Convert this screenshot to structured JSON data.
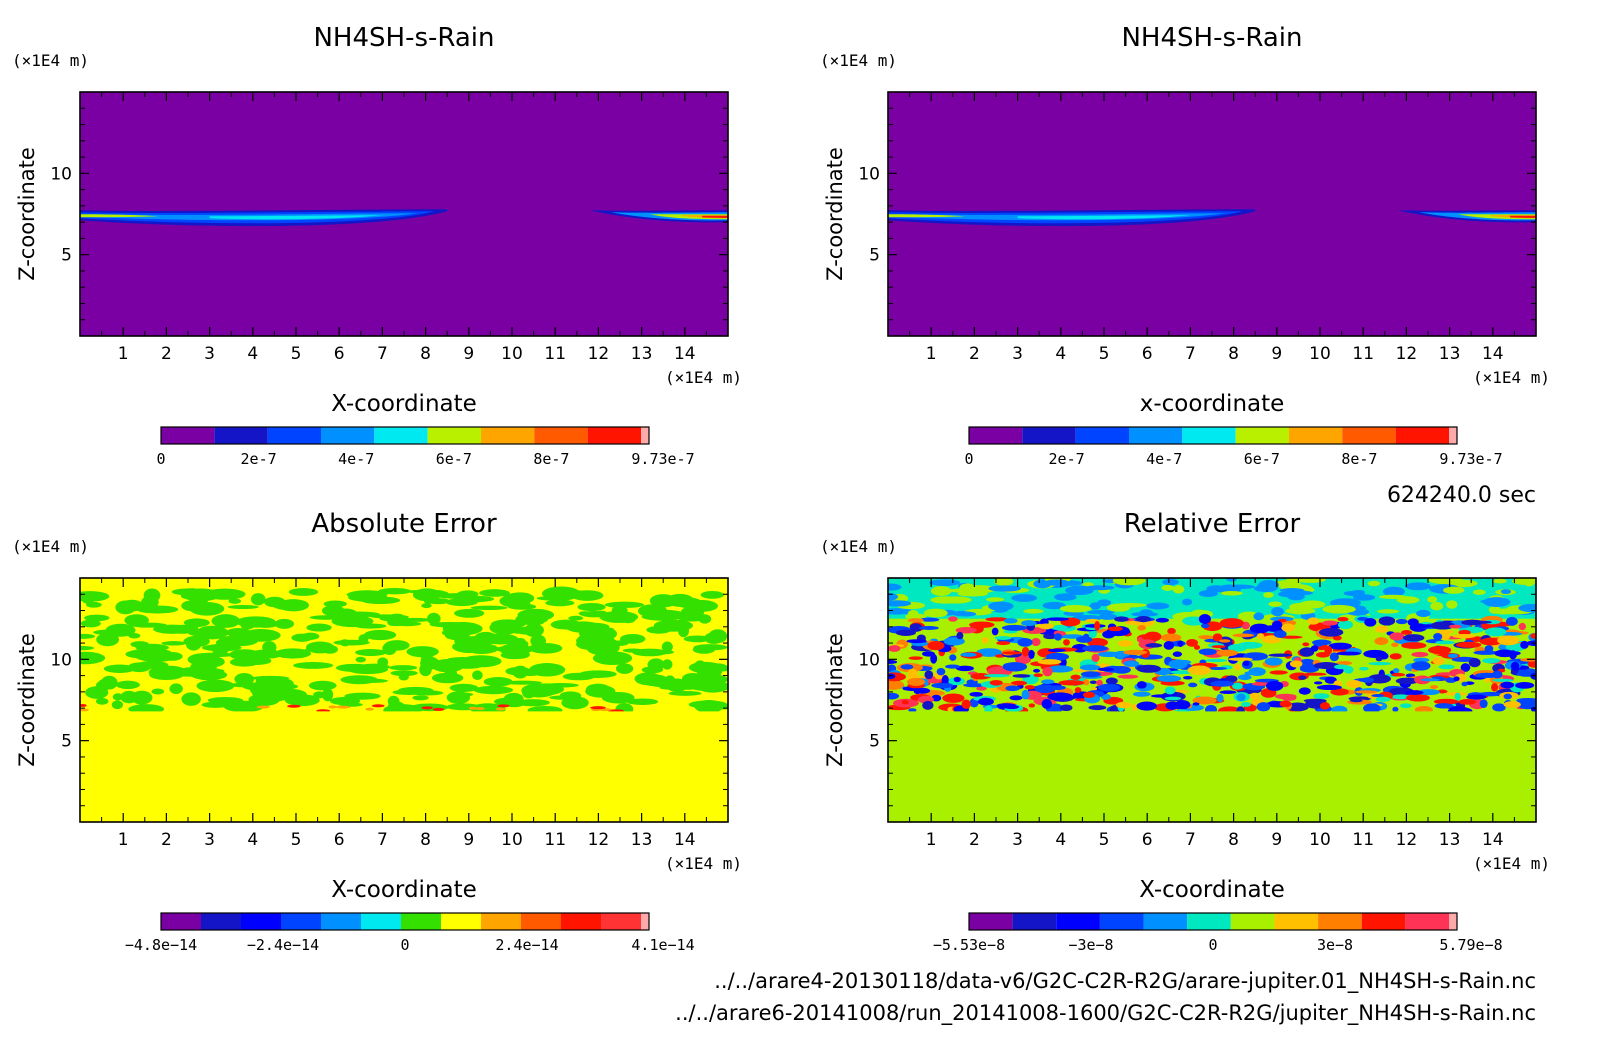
{
  "timestamp": "624240.0 sec",
  "files": [
    "../../arare4-20130118/data-v6/G2C-C2R-R2G/arare-jupiter.01_NH4SH-s-Rain.nc",
    "../../arare6-20141008/run_20141008-1600/G2C-C2R-R2G/jupiter_NH4SH-s-Rain.nc"
  ],
  "axis_unit": "(×1E4 m)",
  "chart_data": [
    {
      "id": "p1",
      "type": "heatmap",
      "title": "NH4SH-s-Rain",
      "xlabel": "X-coordinate",
      "ylabel": "Z-coordinate",
      "x_unit": "(×1E4 m)",
      "y_unit": "(×1E4 m)",
      "xlim": [
        0,
        15
      ],
      "ylim": [
        0,
        15
      ],
      "xticks": [
        "1",
        "2",
        "3",
        "4",
        "5",
        "6",
        "7",
        "8",
        "9",
        "10",
        "11",
        "12",
        "13",
        "14"
      ],
      "yticks": [
        "5",
        "10"
      ],
      "field": "cloud",
      "colorbar": {
        "colors": [
          "#7b00a3",
          "#1515c8",
          "#0044ff",
          "#0090ff",
          "#00e8f0",
          "#b8f000",
          "#ffa500",
          "#ff5a00",
          "#ff1400",
          "#ffaaaa"
        ],
        "labels": [
          "0",
          "2e-7",
          "4e-7",
          "6e-7",
          "8e-7",
          "9.73e-7"
        ]
      }
    },
    {
      "id": "p2",
      "type": "heatmap",
      "title": "NH4SH-s-Rain",
      "xlabel": "x-coordinate",
      "ylabel": "Z-coordinate",
      "x_unit": "(×1E4 m)",
      "y_unit": "(×1E4 m)",
      "xlim": [
        0,
        15
      ],
      "ylim": [
        0,
        15
      ],
      "xticks": [
        "1",
        "2",
        "3",
        "4",
        "5",
        "6",
        "7",
        "8",
        "9",
        "10",
        "11",
        "12",
        "13",
        "14"
      ],
      "yticks": [
        "5",
        "10"
      ],
      "field": "cloud",
      "colorbar": {
        "colors": [
          "#7b00a3",
          "#1515c8",
          "#0044ff",
          "#0090ff",
          "#00e8f0",
          "#b8f000",
          "#ffa500",
          "#ff5a00",
          "#ff1400",
          "#ffaaaa"
        ],
        "labels": [
          "0",
          "2e-7",
          "4e-7",
          "6e-7",
          "8e-7",
          "9.73e-7"
        ]
      }
    },
    {
      "id": "p3",
      "type": "heatmap",
      "title": "Absolute Error",
      "xlabel": "X-coordinate",
      "ylabel": "Z-coordinate",
      "x_unit": "(×1E4 m)",
      "y_unit": "(×1E4 m)",
      "xlim": [
        0,
        15
      ],
      "ylim": [
        0,
        15
      ],
      "xticks": [
        "1",
        "2",
        "3",
        "4",
        "5",
        "6",
        "7",
        "8",
        "9",
        "10",
        "11",
        "12",
        "13",
        "14"
      ],
      "yticks": [
        "5",
        "10"
      ],
      "field": "abs",
      "colorbar": {
        "colors": [
          "#7b00a3",
          "#1515c8",
          "#0000ff",
          "#0044ff",
          "#0090ff",
          "#00e8f0",
          "#33e000",
          "#ffff00",
          "#ffa500",
          "#ff5a00",
          "#ff1400",
          "#ff3333",
          "#ffaaaa"
        ],
        "labels": [
          "−4.8e−14",
          "−2.4e−14",
          "0",
          "2.4e−14",
          "4.1e−14"
        ]
      }
    },
    {
      "id": "p4",
      "type": "heatmap",
      "title": "Relative Error",
      "xlabel": "X-coordinate",
      "ylabel": "Z-coordinate",
      "x_unit": "(×1E4 m)",
      "y_unit": "(×1E4 m)",
      "xlim": [
        0,
        15
      ],
      "ylim": [
        0,
        15
      ],
      "xticks": [
        "1",
        "2",
        "3",
        "4",
        "5",
        "6",
        "7",
        "8",
        "9",
        "10",
        "11",
        "12",
        "13",
        "14"
      ],
      "yticks": [
        "5",
        "10"
      ],
      "field": "rel",
      "colorbar": {
        "colors": [
          "#7b00a3",
          "#1515c8",
          "#0000ff",
          "#0044ff",
          "#0090ff",
          "#00e8c0",
          "#a8f000",
          "#ffc000",
          "#ff8000",
          "#ff1400",
          "#ff3355",
          "#ffaaaa"
        ],
        "labels": [
          "−5.53e−8",
          "−3e−8",
          "0",
          "3e−8",
          "5.79e−8"
        ]
      }
    }
  ]
}
